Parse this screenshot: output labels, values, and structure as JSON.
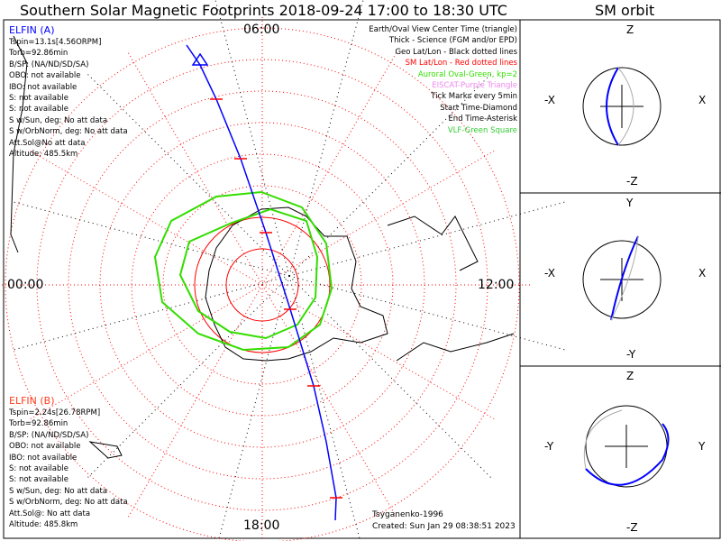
{
  "title": "Southern Solar Magnetic Footprints 2018-09-24 17:00 to 18:30 UTC",
  "orbit_title": "SM orbit",
  "mlt_labels": {
    "top": "06:00",
    "bottom": "18:00",
    "left": "00:00",
    "right": "12:00"
  },
  "elfin_a": {
    "name": "ELFIN (A)",
    "color": "#0000ff",
    "lines": [
      "Tspin=13.1s[4.56ORPM]",
      "Torb=92.86min",
      "B/SP: (NA/ND/SD/SA)",
      "OBO: not available",
      "IBO: not available",
      "S: not available",
      "S: not available",
      "S w/Sun, deg: No att data",
      "S w/OrbNorm, deg: No att data",
      "Att.Sol@No att data",
      "Altitude: 485.5km"
    ]
  },
  "elfin_b": {
    "name": "ELFIN (B)",
    "color": "#ff4020",
    "lines": [
      "Tspin=2.24s[26.78RPM]",
      "Torb=92.86min",
      "B/SP: (NA/ND/SD/SA)",
      "OBO: not available",
      "IBO: not available",
      "S: not available",
      "S: not available",
      "S w/Sun, deg: No att data",
      "S w/OrbNorm, deg: No att data",
      "Att.Sol@: No att data",
      "Altitude: 485.8km"
    ]
  },
  "legend": [
    {
      "text": "Earth/Oval View Center Time (triangle)",
      "color": "#000000"
    },
    {
      "text": "Thick - Science (FGM and/or EPD)",
      "color": "#000000"
    },
    {
      "text": "Geo Lat/Lon - Black dotted lines",
      "color": "#000000"
    },
    {
      "text": "SM Lat/Lon - Red dotted lines",
      "color": "#ff0000"
    },
    {
      "text": "Auroral Oval-Green, kp=2",
      "color": "#33dd00"
    },
    {
      "text": "EISCAT-Purple Triangle",
      "color": "#ee88ee"
    },
    {
      "text": "Tick Marks every 5min",
      "color": "#000000"
    },
    {
      "text": "Start Time-Diamond",
      "color": "#000000"
    },
    {
      "text": "End Time-Asterisk",
      "color": "#000000"
    },
    {
      "text": "VLF-Green Square",
      "color": "#33cc33"
    }
  ],
  "footer": {
    "model": "Tsyganenko-1996",
    "created": "Created: Sun Jan 29 08:38:51 2023"
  },
  "orbit_panels": [
    {
      "top": "Z",
      "bottom": "-Z",
      "left": "-X",
      "right": "X"
    },
    {
      "top": "Y",
      "bottom": "-Y",
      "left": "-X",
      "right": "X"
    },
    {
      "top": "Z",
      "bottom": "-Z",
      "left": "-Y",
      "right": "Y"
    }
  ]
}
